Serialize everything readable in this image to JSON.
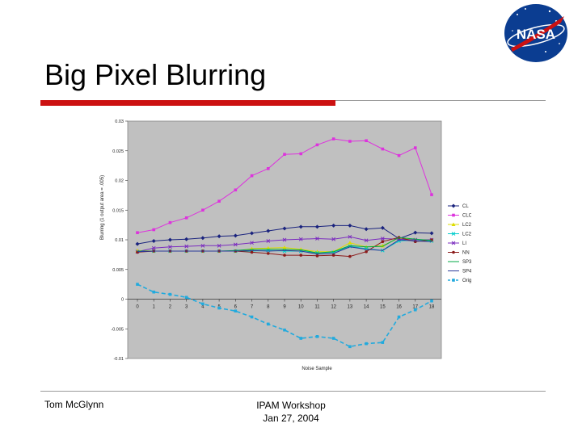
{
  "slide": {
    "title": "Big Pixel Blurring",
    "footer_left": "Tom McGlynn",
    "footer_center_line1": "IPAM Workshop",
    "footer_center_line2": "Jan 27, 2004",
    "logo_text": "NASA"
  },
  "colors": {
    "accent_red": "#cc1111",
    "plot_bg": "#c0c0c0"
  },
  "chart_data": {
    "type": "line",
    "title": "",
    "xlabel": "Noise Sample",
    "ylabel": "Blurring (1 output area = .005)",
    "ylim": [
      -0.01,
      0.03
    ],
    "x": [
      0,
      1,
      2,
      3,
      4,
      5,
      6,
      7,
      8,
      9,
      10,
      11,
      12,
      13,
      14,
      15,
      16,
      17,
      18
    ],
    "y_ticks": [
      "-0.01",
      "-0.005",
      "0",
      "0.005",
      "0.01",
      "0.015",
      "0.02",
      "0.025",
      "0.03"
    ],
    "y_tick_values": [
      -0.01,
      -0.005,
      0,
      0.005,
      0.01,
      0.015,
      0.02,
      0.025,
      0.03
    ],
    "series": [
      {
        "name": "CL",
        "color": "#1a237e",
        "marker": "diamond",
        "dash": "",
        "values": [
          0.0093,
          0.0098,
          0.01,
          0.0101,
          0.0103,
          0.0106,
          0.0107,
          0.0111,
          0.0115,
          0.0119,
          0.0122,
          0.0122,
          0.0124,
          0.0124,
          0.0118,
          0.012,
          0.0102,
          0.0112,
          0.0111
        ]
      },
      {
        "name": "CLC5",
        "color": "#dd33dd",
        "marker": "square",
        "dash": "",
        "values": [
          0.0112,
          0.0117,
          0.0129,
          0.0137,
          0.015,
          0.0165,
          0.0184,
          0.0208,
          0.022,
          0.0244,
          0.0245,
          0.026,
          0.027,
          0.0266,
          0.0267,
          0.0253,
          0.0242,
          0.0255,
          0.0176
        ]
      },
      {
        "name": "LC23",
        "color": "#dddd00",
        "marker": "triangle",
        "dash": "",
        "values": [
          0.0082,
          0.0081,
          0.0081,
          0.0081,
          0.0081,
          0.0081,
          0.0081,
          0.0085,
          0.0086,
          0.0087,
          0.0084,
          0.008,
          0.008,
          0.0095,
          0.0088,
          0.009,
          0.0103,
          0.01,
          0.0099
        ]
      },
      {
        "name": "LC2I",
        "color": "#00cccc",
        "marker": "x",
        "dash": "",
        "values": [
          0.008,
          0.0081,
          0.0081,
          0.0081,
          0.0081,
          0.0081,
          0.0081,
          0.0081,
          0.0082,
          0.0081,
          0.0081,
          0.0078,
          0.0079,
          0.0089,
          0.0085,
          0.0082,
          0.0098,
          0.01,
          0.0098
        ]
      },
      {
        "name": "LI",
        "color": "#7b2cbf",
        "marker": "x",
        "dash": "",
        "values": [
          0.008,
          0.0086,
          0.0088,
          0.0089,
          0.009,
          0.009,
          0.0092,
          0.0095,
          0.0098,
          0.01,
          0.0101,
          0.0102,
          0.0101,
          0.0105,
          0.0099,
          0.0102,
          0.0101,
          0.01,
          0.01
        ]
      },
      {
        "name": "NN",
        "color": "#8b1a1a",
        "marker": "circle",
        "dash": "",
        "values": [
          0.0079,
          0.0081,
          0.0081,
          0.0081,
          0.0081,
          0.0081,
          0.0081,
          0.0079,
          0.0077,
          0.0074,
          0.0074,
          0.0073,
          0.0074,
          0.0072,
          0.008,
          0.0097,
          0.0104,
          0.0097,
          0.01
        ]
      },
      {
        "name": "SP3",
        "color": "#00aa44",
        "marker": "none",
        "dash": "",
        "values": [
          0.0081,
          0.0081,
          0.0081,
          0.0081,
          0.0081,
          0.0081,
          0.0082,
          0.0084,
          0.0084,
          0.0084,
          0.0083,
          0.0078,
          0.008,
          0.009,
          0.0088,
          0.0089,
          0.0104,
          0.0101,
          0.0099
        ]
      },
      {
        "name": "SP4",
        "color": "#2a3a9a",
        "marker": "none",
        "dash": "",
        "values": [
          0.008,
          0.0081,
          0.0081,
          0.0081,
          0.0081,
          0.0081,
          0.0081,
          0.0082,
          0.0081,
          0.0082,
          0.0081,
          0.0076,
          0.0077,
          0.0088,
          0.0084,
          0.0082,
          0.01,
          0.0098,
          0.0097
        ]
      },
      {
        "name": "Orig",
        "color": "#22aadd",
        "marker": "square",
        "dash": "5,3",
        "values": [
          0.0025,
          0.0012,
          0.0008,
          0.0003,
          -0.0008,
          -0.0015,
          -0.002,
          -0.003,
          -0.0042,
          -0.0052,
          -0.0066,
          -0.0063,
          -0.0066,
          -0.008,
          -0.0075,
          -0.0073,
          -0.003,
          -0.0018,
          -0.0003
        ]
      }
    ],
    "legend_position": "right",
    "grid": false
  }
}
